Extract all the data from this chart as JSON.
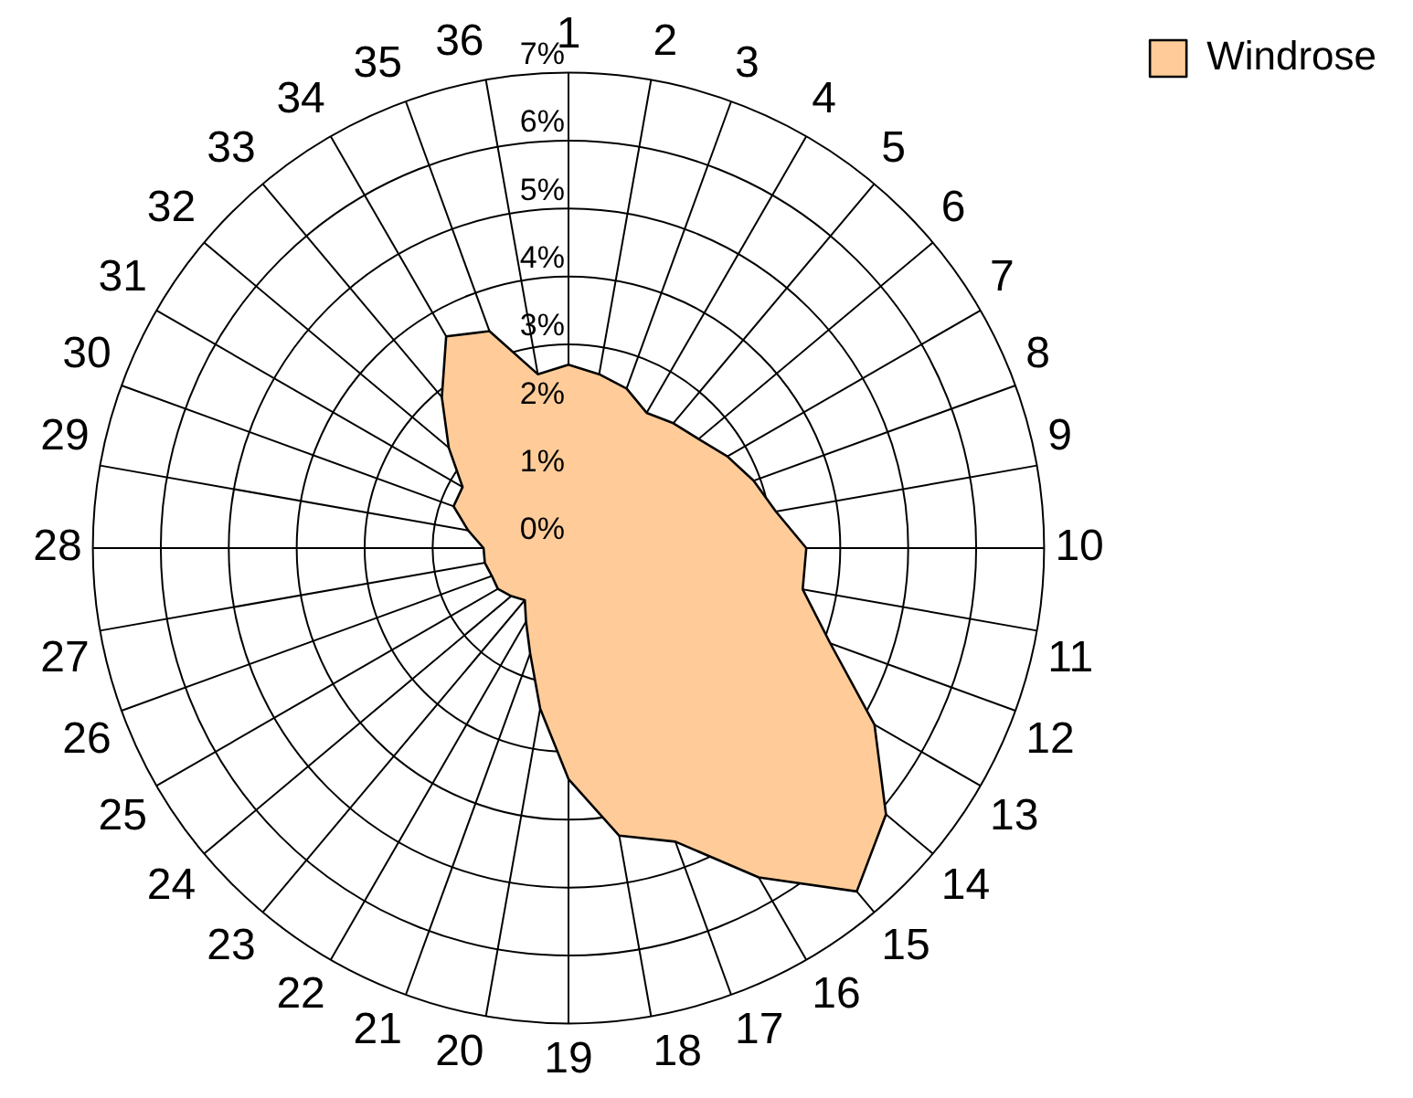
{
  "chart_data": {
    "type": "radar",
    "categories": [
      "1",
      "2",
      "3",
      "4",
      "5",
      "6",
      "7",
      "8",
      "9",
      "10",
      "11",
      "12",
      "13",
      "14",
      "15",
      "16",
      "17",
      "18",
      "19",
      "20",
      "21",
      "22",
      "23",
      "24",
      "25",
      "26",
      "27",
      "28",
      "29",
      "30",
      "31",
      "32",
      "33",
      "34",
      "35",
      "36"
    ],
    "series": [
      {
        "name": "Windrose",
        "color": "#ffcc99",
        "values": [
          2.7,
          2.6,
          2.5,
          2.3,
          2.4,
          2.5,
          2.7,
          2.9,
          3.1,
          3.5,
          3.5,
          4.1,
          5.2,
          6.1,
          6.6,
          5.6,
          4.6,
          4.3,
          3.4,
          2.4,
          1.65,
          1.25,
          1.0,
          1.1,
          1.2,
          1.2,
          1.25,
          1.25,
          1.5,
          1.8,
          1.8,
          2.3,
          2.9,
          3.6,
          3.4,
          2.6
        ]
      }
    ],
    "ylim": [
      0,
      7
    ],
    "yticks": [
      {
        "value": 0,
        "label": "0%"
      },
      {
        "value": 1,
        "label": "1%"
      },
      {
        "value": 2,
        "label": "2%"
      },
      {
        "value": 3,
        "label": "3%"
      },
      {
        "value": 4,
        "label": "4%"
      },
      {
        "value": 5,
        "label": "5%"
      },
      {
        "value": 6,
        "label": "6%"
      },
      {
        "value": 7,
        "label": "7%"
      }
    ],
    "legend": "right",
    "grid": true,
    "marker": "none"
  }
}
